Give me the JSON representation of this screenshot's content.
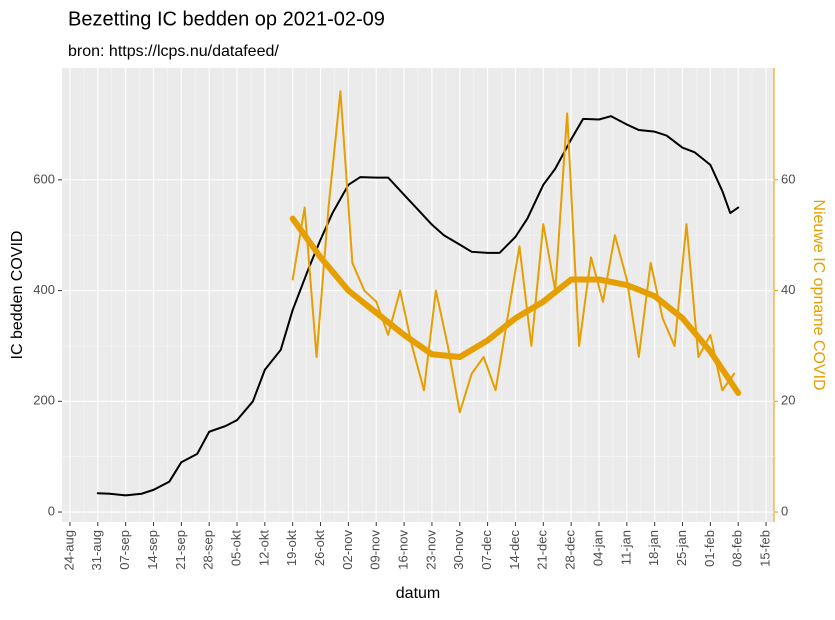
{
  "chart_data": {
    "type": "line",
    "title": "Bezetting IC bedden op 2021-02-09",
    "subtitle": "bron: https://lcps.nu/datafeed/",
    "x_label": "datum",
    "y_label": "IC bedden COVID",
    "y2_label": "Nieuwe IC opname COVID",
    "xlim": [
      -2,
      177
    ],
    "ylim": [
      -18,
      802
    ],
    "y2lim": [
      -1.8,
      80.2
    ],
    "xticks": [
      {
        "value": 0,
        "label": "24-aug"
      },
      {
        "value": 7,
        "label": "31-aug"
      },
      {
        "value": 14,
        "label": "07-sep"
      },
      {
        "value": 21,
        "label": "14-sep"
      },
      {
        "value": 28,
        "label": "21-sep"
      },
      {
        "value": 35,
        "label": "28-sep"
      },
      {
        "value": 42,
        "label": "05-okt"
      },
      {
        "value": 49,
        "label": "12-okt"
      },
      {
        "value": 56,
        "label": "19-okt"
      },
      {
        "value": 63,
        "label": "26-okt"
      },
      {
        "value": 70,
        "label": "02-nov"
      },
      {
        "value": 77,
        "label": "09-nov"
      },
      {
        "value": 84,
        "label": "16-nov"
      },
      {
        "value": 91,
        "label": "23-nov"
      },
      {
        "value": 98,
        "label": "30-nov"
      },
      {
        "value": 105,
        "label": "07-dec"
      },
      {
        "value": 112,
        "label": "14-dec"
      },
      {
        "value": 119,
        "label": "21-dec"
      },
      {
        "value": 126,
        "label": "28-dec"
      },
      {
        "value": 133,
        "label": "04-jan"
      },
      {
        "value": 140,
        "label": "11-jan"
      },
      {
        "value": 147,
        "label": "18-jan"
      },
      {
        "value": 154,
        "label": "25-jan"
      },
      {
        "value": 161,
        "label": "01-feb"
      },
      {
        "value": 168,
        "label": "08-feb"
      },
      {
        "value": 175,
        "label": "15-feb"
      }
    ],
    "yticks": [
      0,
      200,
      400,
      600
    ],
    "y2ticks": [
      0,
      20,
      40,
      60
    ],
    "grid": true,
    "series": [
      {
        "color": "#000000",
        "width": 2,
        "x": [
          7,
          10,
          14,
          18,
          21,
          25,
          28,
          32,
          35,
          39,
          42,
          46,
          49,
          53,
          56,
          60,
          63,
          66,
          70,
          73,
          77,
          80,
          84,
          87,
          91,
          94,
          98,
          101,
          105,
          108,
          112,
          115,
          119,
          122,
          126,
          129,
          133,
          136,
          140,
          143,
          147,
          150,
          154,
          157,
          161,
          164,
          166,
          168
        ],
        "values": [
          34,
          33,
          30,
          33,
          40,
          55,
          90,
          105,
          145,
          155,
          166,
          200,
          257,
          293,
          365,
          440,
          492,
          540,
          591,
          605,
          604,
          604,
          573,
          550,
          519,
          500,
          483,
          470,
          468,
          468,
          497,
          530,
          591,
          620,
          673,
          710,
          709,
          715,
          700,
          690,
          687,
          680,
          658,
          650,
          627,
          580,
          540,
          550
        ]
      },
      {
        "color": "#e69f00",
        "width": 2,
        "axis": "y2",
        "x": [
          56,
          59,
          62,
          65,
          68,
          71,
          74,
          77,
          80,
          83,
          86,
          89,
          92,
          95,
          98,
          101,
          104,
          107,
          110,
          113,
          116,
          119,
          122,
          125,
          128,
          131,
          134,
          137,
          140,
          143,
          146,
          149,
          152,
          155,
          158,
          161,
          164,
          167
        ],
        "values": [
          42,
          55,
          28,
          55,
          76,
          45,
          40,
          38,
          32,
          40,
          30,
          22,
          40,
          30,
          18,
          25,
          28,
          22,
          35,
          48,
          30,
          52,
          40,
          72,
          30,
          46,
          38,
          50,
          42,
          28,
          45,
          35,
          30,
          52,
          28,
          32,
          22,
          25
        ]
      },
      {
        "color": "#e69f00",
        "width": 6,
        "axis": "y2",
        "x": [
          56,
          63,
          70,
          77,
          84,
          91,
          98,
          105,
          112,
          119,
          126,
          133,
          140,
          147,
          154,
          161,
          168
        ],
        "values": [
          53,
          46,
          40,
          36,
          32,
          28.5,
          28,
          31,
          35,
          38,
          42,
          42,
          41,
          39,
          35,
          29,
          21.5
        ]
      }
    ]
  }
}
